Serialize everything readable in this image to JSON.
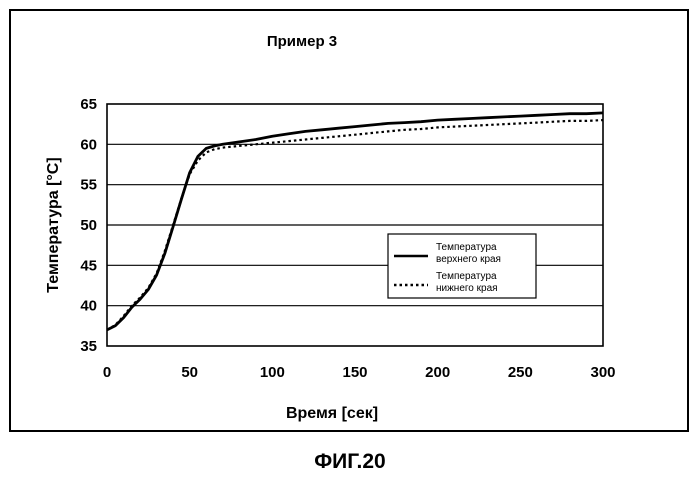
{
  "figure_caption": "ФИГ.20",
  "chart_data": {
    "type": "line",
    "title": "Пример 3",
    "xlabel": "Время [сек]",
    "ylabel": "Температура [°C]",
    "xlim": [
      0,
      300
    ],
    "ylim": [
      35,
      65
    ],
    "xticks": [
      0,
      50,
      100,
      150,
      200,
      250,
      300
    ],
    "yticks": [
      35,
      40,
      45,
      50,
      55,
      60,
      65
    ],
    "grid": "horizontal",
    "legend_position": "right",
    "series": [
      {
        "name": "Температура верхнего края",
        "style": "solid",
        "color": "#000000",
        "x": [
          0,
          5,
          10,
          15,
          20,
          25,
          30,
          35,
          40,
          45,
          50,
          55,
          60,
          65,
          70,
          80,
          90,
          100,
          110,
          120,
          130,
          140,
          150,
          160,
          170,
          180,
          190,
          200,
          210,
          220,
          230,
          240,
          250,
          260,
          270,
          280,
          290,
          300
        ],
        "y": [
          37.0,
          37.5,
          38.5,
          39.8,
          40.8,
          42.0,
          43.8,
          46.5,
          49.8,
          53.2,
          56.5,
          58.5,
          59.5,
          59.8,
          60.0,
          60.3,
          60.6,
          61.0,
          61.3,
          61.6,
          61.8,
          62.0,
          62.2,
          62.4,
          62.6,
          62.7,
          62.8,
          63.0,
          63.1,
          63.2,
          63.3,
          63.4,
          63.5,
          63.6,
          63.7,
          63.8,
          63.8,
          63.9
        ]
      },
      {
        "name": "Температура нижнего края",
        "style": "dotted",
        "color": "#000000",
        "x": [
          0,
          5,
          10,
          15,
          20,
          25,
          30,
          35,
          40,
          45,
          50,
          55,
          60,
          65,
          70,
          80,
          90,
          100,
          110,
          120,
          130,
          140,
          150,
          160,
          170,
          180,
          190,
          200,
          210,
          220,
          230,
          240,
          250,
          260,
          270,
          280,
          290,
          300
        ],
        "y": [
          37.0,
          37.6,
          38.7,
          40.0,
          41.0,
          42.2,
          44.0,
          46.8,
          50.0,
          53.3,
          56.3,
          58.0,
          59.0,
          59.4,
          59.6,
          59.8,
          60.0,
          60.2,
          60.4,
          60.6,
          60.8,
          61.0,
          61.2,
          61.4,
          61.6,
          61.8,
          61.9,
          62.1,
          62.2,
          62.3,
          62.4,
          62.5,
          62.6,
          62.7,
          62.8,
          62.9,
          62.9,
          63.0
        ]
      }
    ]
  }
}
